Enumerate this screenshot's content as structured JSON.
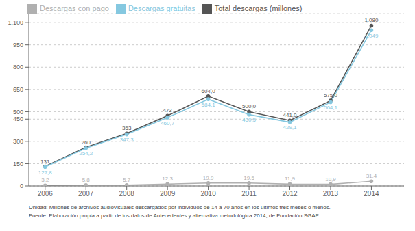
{
  "chart_data": {
    "type": "line",
    "x": [
      2006,
      2007,
      2008,
      2009,
      2010,
      2011,
      2012,
      2013,
      2014
    ],
    "xlim": [
      2005.6,
      2014.8
    ],
    "xticks": [
      2006,
      2007,
      2008,
      2009,
      2010,
      2011,
      2012,
      2013,
      2014
    ],
    "ylim": [
      0,
      1160
    ],
    "yticks": [
      0,
      150,
      300,
      450,
      500,
      650,
      800,
      950,
      {
        "value": 1100,
        "label": "1.100"
      }
    ],
    "grid": true,
    "legend": "top",
    "data_labels": true,
    "marker": "circle",
    "series": [
      {
        "name": "Total descargas (millones)",
        "color": "#555555",
        "values": [
          131,
          260,
          353,
          473,
          604.0,
          500.0,
          441.0,
          575.0,
          1080
        ],
        "value_labels": [
          "131",
          "260",
          "353",
          "473",
          "604,0",
          "500,0",
          "441,0",
          "575,0",
          "1.080"
        ]
      },
      {
        "name": "Descargas gratuitas",
        "color": "#85c8e0",
        "values": [
          127.8,
          254.2,
          347.3,
          460.7,
          584.1,
          480.5,
          429.1,
          564.1,
          1049
        ],
        "value_labels": [
          "127,8",
          "254,2",
          "347,3",
          "460,7",
          "584,1",
          "480,5",
          "429,1",
          "564,1",
          "1.049"
        ]
      },
      {
        "name": "Descargas con pago",
        "color": "#b0b0b0",
        "values": [
          3.2,
          5.8,
          5.7,
          12.3,
          19.9,
          19.5,
          11.9,
          10.9,
          31.4
        ],
        "value_labels": [
          "3,2",
          "5,8",
          "5,7",
          "12,3",
          "19,9",
          "19,5",
          "11,9",
          "10,9",
          "31,4"
        ]
      }
    ],
    "annotations": [
      "Unidad: Millones de archivos audiovisuales descargados por individuos de 14 a 70 años en los últimos tres meses o menos.",
      "Fuente: Elaboración propia a partir de los datos de Antecedentes y alternativa metodológica 2014, de Fundación SGAE."
    ]
  }
}
